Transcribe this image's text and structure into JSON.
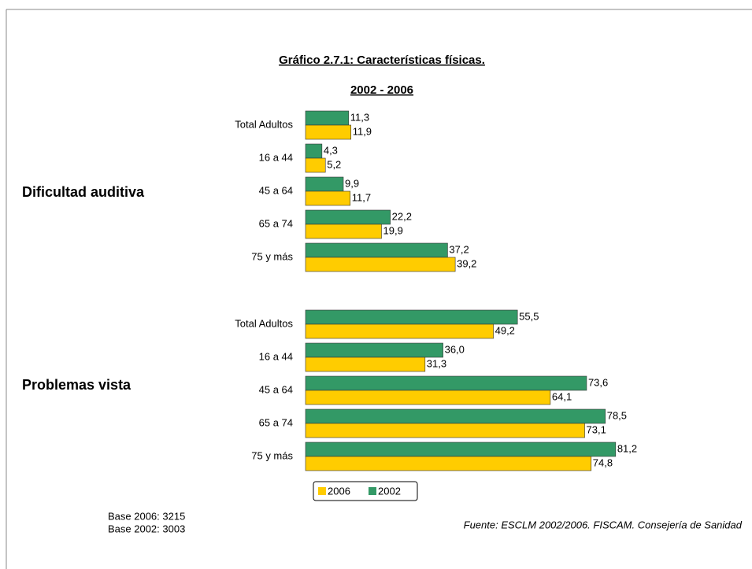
{
  "chart_data": {
    "type": "bar",
    "title": "Gráfico 2.7.1: Características físicas.",
    "subtitle": "2002 - 2006",
    "groups": [
      "Dificultad auditiva",
      "Problemas vista"
    ],
    "categories": [
      "Total Adultos",
      "16 a 44",
      "45 a 64",
      "65 a 74",
      "75 y más",
      "Total Adultos",
      "16 a 44",
      "45 a 64",
      "65 a 74",
      "75 y más"
    ],
    "series": [
      {
        "name": "2006",
        "color": "#ffcc00",
        "values": [
          11.9,
          5.2,
          11.7,
          19.9,
          39.2,
          49.2,
          31.3,
          64.1,
          73.1,
          74.8
        ],
        "value_labels": [
          "11,9",
          "5,2",
          "11,7",
          "19,9",
          "39,2",
          "49,2",
          "31,3",
          "64,1",
          "73,1",
          "74,8"
        ]
      },
      {
        "name": "2002",
        "color": "#339966",
        "values": [
          11.3,
          4.3,
          9.9,
          22.2,
          37.2,
          55.5,
          36.0,
          73.6,
          78.5,
          81.2
        ],
        "value_labels": [
          "11,3",
          "4,3",
          "9,9",
          "22,2",
          "37,2",
          "55,5",
          "36,0",
          "73,6",
          "78,5",
          "81,2"
        ]
      }
    ],
    "notes": [
      "Base 2006: 3215",
      "Base 2002: 3003"
    ],
    "source": "Fuente: ESCLM 2002/2006. FISCAM. Consejería de Sanidad"
  }
}
